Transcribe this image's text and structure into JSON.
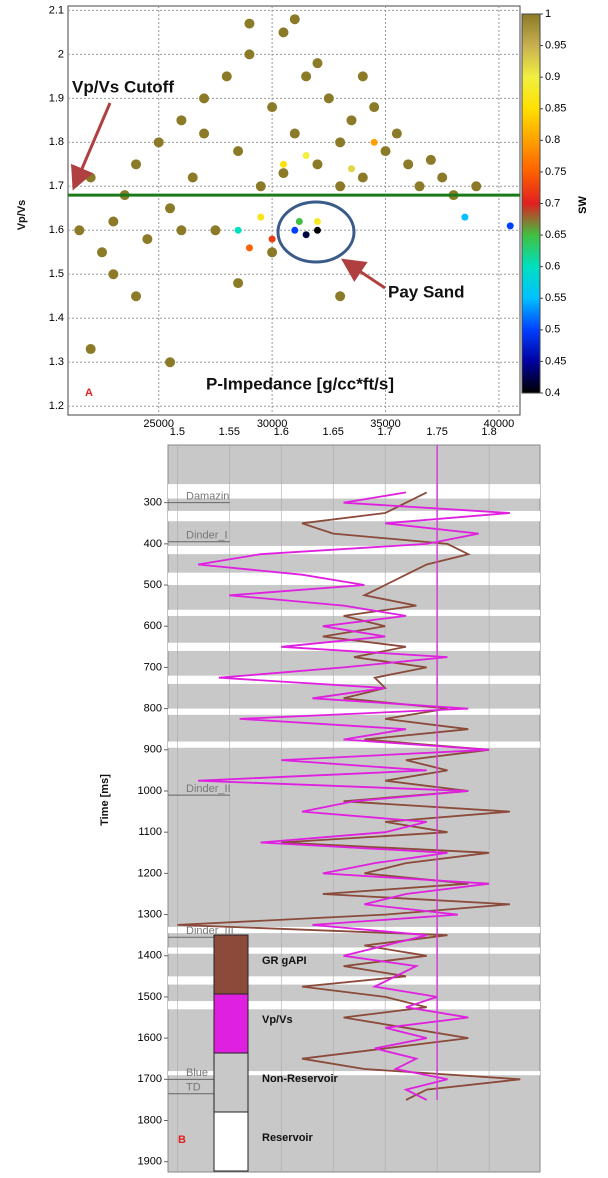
{
  "chart_data": [
    {
      "type": "scatter",
      "panel_label": "A",
      "xlabel": "P-Impedance [g/cc*ft/s]",
      "ylabel": "Vp/Vs",
      "xlim": [
        21000,
        40930
      ],
      "xticks": [
        25000,
        30000,
        35000,
        40000
      ],
      "ylim": [
        1.18,
        2.11
      ],
      "yticks": [
        1.2,
        1.3,
        1.4,
        1.5,
        1.6,
        1.7,
        1.8,
        1.9,
        2,
        2.1
      ],
      "grid": true,
      "colorbar_label": "SW",
      "cticks": [
        0.4,
        0.45,
        0.5,
        0.55,
        0.6,
        0.65,
        0.7,
        0.75,
        0.8,
        0.85,
        0.9,
        0.95,
        1
      ],
      "colormap": [
        "#000000",
        "#0000a0",
        "#0040ff",
        "#00c0ff",
        "#00e0c0",
        "#40c040",
        "#e02020",
        "#ff6000",
        "#ffa000",
        "#ffe000",
        "#f0f040",
        "#c8b050",
        "#8b7a28"
      ],
      "cutoff": 1.68,
      "cutoff_color": "#1a7a1a",
      "cutoff_label": "Vp/Vs Cutoff",
      "pay_label": "Pay Sand",
      "x": [
        22000,
        22500,
        23000,
        23500,
        24000,
        24500,
        25000,
        25500,
        26000,
        26500,
        27000,
        27500,
        28000,
        28500,
        29000,
        29500,
        30000,
        30500,
        31000,
        31500,
        32000,
        32500,
        33000,
        33500,
        34000,
        34500,
        35000,
        35500,
        36000,
        36500,
        37000,
        37500,
        38000,
        39000,
        24000,
        23000,
        22000,
        25500,
        28500,
        30000,
        33000,
        29000,
        31000,
        27000,
        32000,
        33000,
        26000,
        34000,
        21500,
        30500,
        31500,
        30500,
        32000,
        29500,
        33500,
        34500,
        31000,
        31500,
        32000,
        28500,
        30000,
        31200,
        38500,
        40500,
        29000
      ],
      "values": [
        1.72,
        1.55,
        1.62,
        1.68,
        1.75,
        1.58,
        1.8,
        1.65,
        1.85,
        1.72,
        1.9,
        1.6,
        1.95,
        1.78,
        2.0,
        1.7,
        1.88,
        2.05,
        1.82,
        1.95,
        1.75,
        1.9,
        1.8,
        1.85,
        1.72,
        1.88,
        1.78,
        1.82,
        1.75,
        1.7,
        1.76,
        1.72,
        1.68,
        1.7,
        1.45,
        1.5,
        1.33,
        1.3,
        1.48,
        1.55,
        1.45,
        2.07,
        2.08,
        1.82,
        1.98,
        1.7,
        1.6,
        1.95,
        1.6,
        1.73,
        1.77,
        1.75,
        1.62,
        1.63,
        1.74,
        1.8,
        1.6,
        1.59,
        1.6,
        1.6,
        1.58,
        1.62,
        1.63,
        1.61,
        1.56
      ],
      "sw": [
        1,
        1,
        1,
        1,
        1,
        1,
        1,
        1,
        1,
        1,
        1,
        1,
        1,
        1,
        1,
        1,
        1,
        1,
        1,
        1,
        1,
        1,
        1,
        1,
        1,
        1,
        1,
        1,
        1,
        1,
        1,
        1,
        1,
        1,
        1,
        1,
        1,
        1,
        1,
        1,
        1,
        1,
        1,
        1,
        1,
        1,
        1,
        1,
        1,
        1,
        0.9,
        0.85,
        0.88,
        0.87,
        0.92,
        0.8,
        0.5,
        0.42,
        0.4,
        0.6,
        0.72,
        0.65,
        0.55,
        0.5,
        0.75
      ]
    },
    {
      "type": "line",
      "panel_label": "B",
      "ylabel": "Time [ms]",
      "xlim": [
        1.491,
        1.849
      ],
      "xticks": [
        1.5,
        1.55,
        1.6,
        1.65,
        1.7,
        1.75,
        1.8
      ],
      "ylim": [
        160,
        1925
      ],
      "yticks": [
        300,
        400,
        500,
        600,
        700,
        800,
        900,
        1000,
        1100,
        1200,
        1300,
        1400,
        1500,
        1600,
        1700,
        1800,
        1900
      ],
      "cutoff": 1.75,
      "cutoff_color": "#d040d0",
      "y": [
        275,
        300,
        325,
        350,
        375,
        400,
        425,
        450,
        475,
        500,
        525,
        550,
        575,
        600,
        625,
        650,
        675,
        700,
        725,
        750,
        775,
        800,
        825,
        850,
        875,
        900,
        925,
        950,
        975,
        1000,
        1025,
        1050,
        1075,
        1100,
        1125,
        1150,
        1175,
        1200,
        1225,
        1250,
        1275,
        1300,
        1325,
        1350,
        1375,
        1400,
        1425,
        1450,
        1475,
        1500,
        1525,
        1550,
        1575,
        1600,
        1625,
        1650,
        1675,
        1700,
        1725,
        1750
      ],
      "series": [
        {
          "name": "GR gAPI",
          "color": "#8b4a3a",
          "values": [
            1.74,
            1.72,
            1.7,
            1.62,
            1.65,
            1.76,
            1.78,
            1.74,
            1.72,
            1.7,
            1.68,
            1.73,
            1.66,
            1.7,
            1.64,
            1.72,
            1.67,
            1.74,
            1.69,
            1.7,
            1.66,
            1.76,
            1.7,
            1.78,
            1.68,
            1.8,
            1.72,
            1.76,
            1.7,
            1.78,
            1.66,
            1.82,
            1.7,
            1.76,
            1.6,
            1.8,
            1.72,
            1.68,
            1.78,
            1.64,
            1.82,
            1.7,
            1.5,
            1.76,
            1.68,
            1.74,
            1.66,
            1.72,
            1.62,
            1.7,
            1.74,
            1.66,
            1.72,
            1.78,
            1.7,
            1.62,
            1.68,
            1.83,
            1.74,
            1.72
          ]
        },
        {
          "name": "Vp/Vs",
          "color": "#e020e0",
          "values": [
            1.72,
            1.66,
            1.82,
            1.7,
            1.79,
            1.74,
            1.58,
            1.52,
            1.62,
            1.68,
            1.55,
            1.66,
            1.72,
            1.64,
            1.7,
            1.6,
            1.76,
            1.66,
            1.54,
            1.7,
            1.63,
            1.78,
            1.56,
            1.72,
            1.66,
            1.8,
            1.6,
            1.74,
            1.52,
            1.78,
            1.67,
            1.62,
            1.74,
            1.7,
            1.58,
            1.76,
            1.69,
            1.64,
            1.8,
            1.72,
            1.68,
            1.77,
            1.63,
            1.74,
            1.7,
            1.66,
            1.73,
            1.71,
            1.69,
            1.75,
            1.72,
            1.78,
            1.7,
            1.74,
            1.69,
            1.73,
            1.71,
            1.76,
            1.72,
            1.74
          ]
        }
      ],
      "zones": [
        {
          "name": "Non-Reservoir",
          "color": "#c8c8c8"
        },
        {
          "name": "Reservoir",
          "color": "#ffffff",
          "intervals": [
            [
              255,
              290
            ],
            [
              320,
              345
            ],
            [
              405,
              425
            ],
            [
              470,
              500
            ],
            [
              560,
              575
            ],
            [
              640,
              660
            ],
            [
              720,
              740
            ],
            [
              800,
              815
            ],
            [
              880,
              895
            ],
            [
              1330,
              1345
            ],
            [
              1380,
              1395
            ],
            [
              1450,
              1470
            ],
            [
              1510,
              1530
            ],
            [
              1680,
              1690
            ]
          ]
        }
      ],
      "tops": [
        {
          "name": "Damazin",
          "time": 300
        },
        {
          "name": "Dinder_I",
          "time": 395
        },
        {
          "name": "Dinder_II",
          "time": 1010
        },
        {
          "name": "Dinder_III",
          "time": 1355
        },
        {
          "name": "Blue",
          "time": 1700
        },
        {
          "name": "TD",
          "time": 1735
        }
      ]
    }
  ]
}
